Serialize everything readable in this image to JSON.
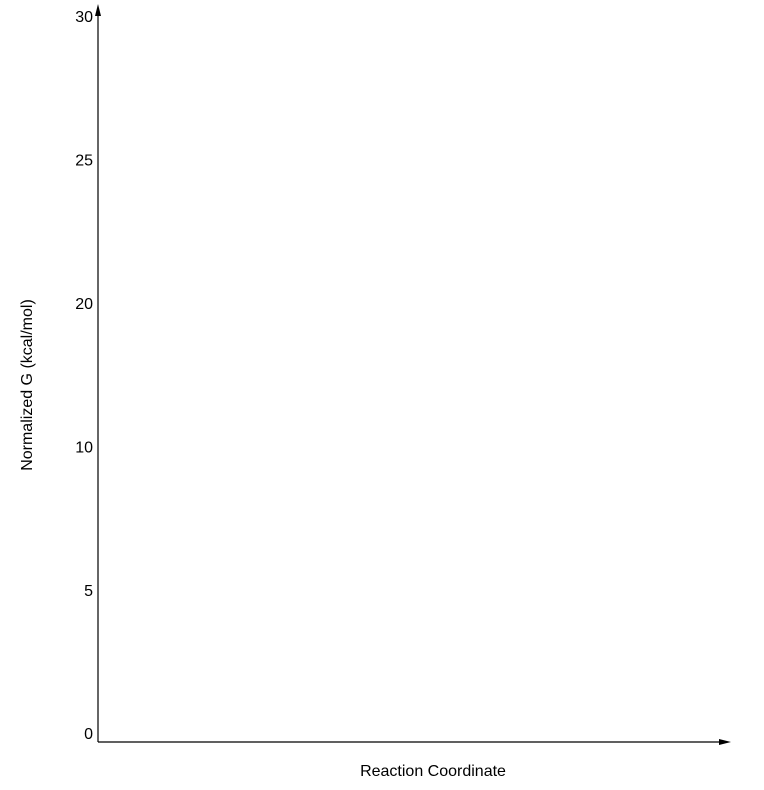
{
  "y_axis": {
    "label": "Normalized G (kcal/mol)",
    "tick_labels": [
      "0",
      "5",
      "10",
      "20",
      "25",
      "30"
    ]
  },
  "x_axis": {
    "label": "Reaction Coordinate"
  }
}
